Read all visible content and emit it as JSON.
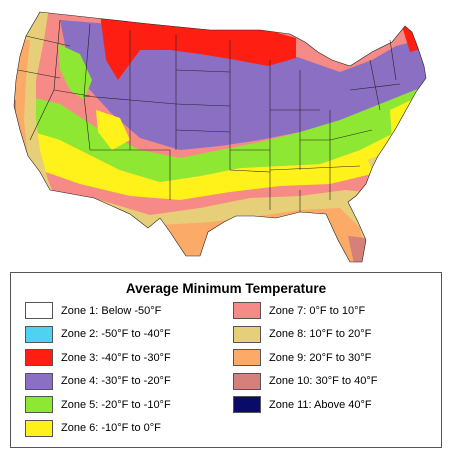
{
  "legend": {
    "title": "Average Minimum Temperature",
    "zones": [
      {
        "label": "Zone 1: Below -50°F",
        "color": "#ffffff"
      },
      {
        "label": "Zone 2: -50°F to -40°F",
        "color": "#4fd1f0"
      },
      {
        "label": "Zone 3: -40°F to -30°F",
        "color": "#ff1f12"
      },
      {
        "label": "Zone 4: -30°F to -20°F",
        "color": "#8a6fc2"
      },
      {
        "label": "Zone 5: -20°F to -10°F",
        "color": "#8ee833"
      },
      {
        "label": "Zone 6: -10°F to 0°F",
        "color": "#fff21a"
      },
      {
        "label": "Zone 7: 0°F to 10°F",
        "color": "#f68a86"
      },
      {
        "label": "Zone 8: 10°F to 20°F",
        "color": "#e6cf78"
      },
      {
        "label": "Zone 9: 20°F to 30°F",
        "color": "#fbab67"
      },
      {
        "label": "Zone 10: 30°F to 40°F",
        "color": "#d6807c"
      },
      {
        "label": "Zone 11: Above 40°F",
        "color": "#0a0a6a"
      }
    ]
  }
}
